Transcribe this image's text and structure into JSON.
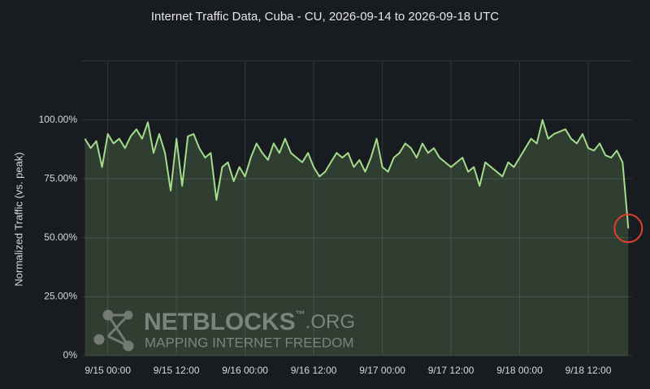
{
  "chart_data": {
    "type": "line",
    "title": "Internet Traffic Data, Cuba - CU, 2026-09-14 to 2026-09-18 UTC",
    "y_label": "Normalized Traffic (vs. peak)",
    "x": [
      "2026-09-14T20:00",
      "2026-09-14T21:00",
      "2026-09-14T22:00",
      "2026-09-14T23:00",
      "2026-09-15T00:00",
      "2026-09-15T01:00",
      "2026-09-15T02:00",
      "2026-09-15T03:00",
      "2026-09-15T04:00",
      "2026-09-15T05:00",
      "2026-09-15T06:00",
      "2026-09-15T07:00",
      "2026-09-15T08:00",
      "2026-09-15T09:00",
      "2026-09-15T10:00",
      "2026-09-15T11:00",
      "2026-09-15T12:00",
      "2026-09-15T13:00",
      "2026-09-15T14:00",
      "2026-09-15T15:00",
      "2026-09-15T16:00",
      "2026-09-15T17:00",
      "2026-09-15T18:00",
      "2026-09-15T19:00",
      "2026-09-15T20:00",
      "2026-09-15T21:00",
      "2026-09-15T22:00",
      "2026-09-15T23:00",
      "2026-09-16T00:00",
      "2026-09-16T01:00",
      "2026-09-16T02:00",
      "2026-09-16T03:00",
      "2026-09-16T04:00",
      "2026-09-16T05:00",
      "2026-09-16T06:00",
      "2026-09-16T07:00",
      "2026-09-16T08:00",
      "2026-09-16T09:00",
      "2026-09-16T10:00",
      "2026-09-16T11:00",
      "2026-09-16T12:00",
      "2026-09-16T13:00",
      "2026-09-16T14:00",
      "2026-09-16T15:00",
      "2026-09-16T16:00",
      "2026-09-16T17:00",
      "2026-09-16T18:00",
      "2026-09-16T19:00",
      "2026-09-16T20:00",
      "2026-09-16T21:00",
      "2026-09-16T22:00",
      "2026-09-16T23:00",
      "2026-09-17T00:00",
      "2026-09-17T01:00",
      "2026-09-17T02:00",
      "2026-09-17T03:00",
      "2026-09-17T04:00",
      "2026-09-17T05:00",
      "2026-09-17T06:00",
      "2026-09-17T07:00",
      "2026-09-17T08:00",
      "2026-09-17T09:00",
      "2026-09-17T10:00",
      "2026-09-17T11:00",
      "2026-09-17T12:00",
      "2026-09-17T13:00",
      "2026-09-17T14:00",
      "2026-09-17T15:00",
      "2026-09-17T16:00",
      "2026-09-17T17:00",
      "2026-09-17T18:00",
      "2026-09-17T19:00",
      "2026-09-17T20:00",
      "2026-09-17T21:00",
      "2026-09-17T22:00",
      "2026-09-17T23:00",
      "2026-09-18T00:00",
      "2026-09-18T01:00",
      "2026-09-18T02:00",
      "2026-09-18T03:00",
      "2026-09-18T04:00",
      "2026-09-18T05:00",
      "2026-09-18T06:00",
      "2026-09-18T07:00",
      "2026-09-18T08:00",
      "2026-09-18T09:00",
      "2026-09-18T10:00",
      "2026-09-18T11:00",
      "2026-09-18T12:00",
      "2026-09-18T13:00",
      "2026-09-18T14:00",
      "2026-09-18T15:00",
      "2026-09-18T16:00",
      "2026-09-18T17:00",
      "2026-09-18T18:00",
      "2026-09-18T19:00"
    ],
    "values": [
      92,
      88,
      91,
      80,
      94,
      90,
      92,
      88,
      93,
      96,
      92,
      99,
      86,
      94,
      86,
      70,
      92,
      72,
      93,
      94,
      88,
      84,
      86,
      66,
      80,
      82,
      74,
      80,
      76,
      84,
      90,
      86,
      83,
      90,
      86,
      92,
      86,
      84,
      82,
      86,
      80,
      76,
      78,
      82,
      86,
      84,
      86,
      80,
      83,
      78,
      84,
      92,
      80,
      78,
      84,
      86,
      90,
      88,
      84,
      90,
      86,
      88,
      84,
      82,
      80,
      82,
      84,
      78,
      80,
      72,
      82,
      80,
      78,
      76,
      82,
      80,
      84,
      88,
      92,
      90,
      100,
      92,
      94,
      95,
      96,
      92,
      90,
      94,
      88,
      87,
      90,
      85,
      84,
      87,
      82,
      54
    ],
    "color": "#a3dc8a",
    "xlim": [
      "2026-09-14T19:30",
      "2026-09-18T19:40"
    ],
    "xticks": [
      {
        "value": "2026-09-15T00:00",
        "label": "9/15 00:00"
      },
      {
        "value": "2026-09-15T12:00",
        "label": "9/15 12:00"
      },
      {
        "value": "2026-09-16T00:00",
        "label": "9/16 00:00"
      },
      {
        "value": "2026-09-16T12:00",
        "label": "9/16 12:00"
      },
      {
        "value": "2026-09-17T00:00",
        "label": "9/17 00:00"
      },
      {
        "value": "2026-09-17T12:00",
        "label": "9/17 12:00"
      },
      {
        "value": "2026-09-18T00:00",
        "label": "9/18 00:00"
      },
      {
        "value": "2026-09-18T12:00",
        "label": "9/18 12:00"
      }
    ],
    "ylim": [
      0,
      125
    ],
    "yticks": [
      {
        "value": 0,
        "label": "0%"
      },
      {
        "value": 25,
        "label": "25.00%"
      },
      {
        "value": 50,
        "label": "50.00%"
      },
      {
        "value": 75,
        "label": "75.00%"
      },
      {
        "value": 100,
        "label": "100.00%"
      }
    ],
    "grid": true
  },
  "watermark": {
    "brand": "NETBLOCKS",
    "tm": "™",
    "domain": ".ORG",
    "tagline": "MAPPING INTERNET FREEDOM"
  }
}
